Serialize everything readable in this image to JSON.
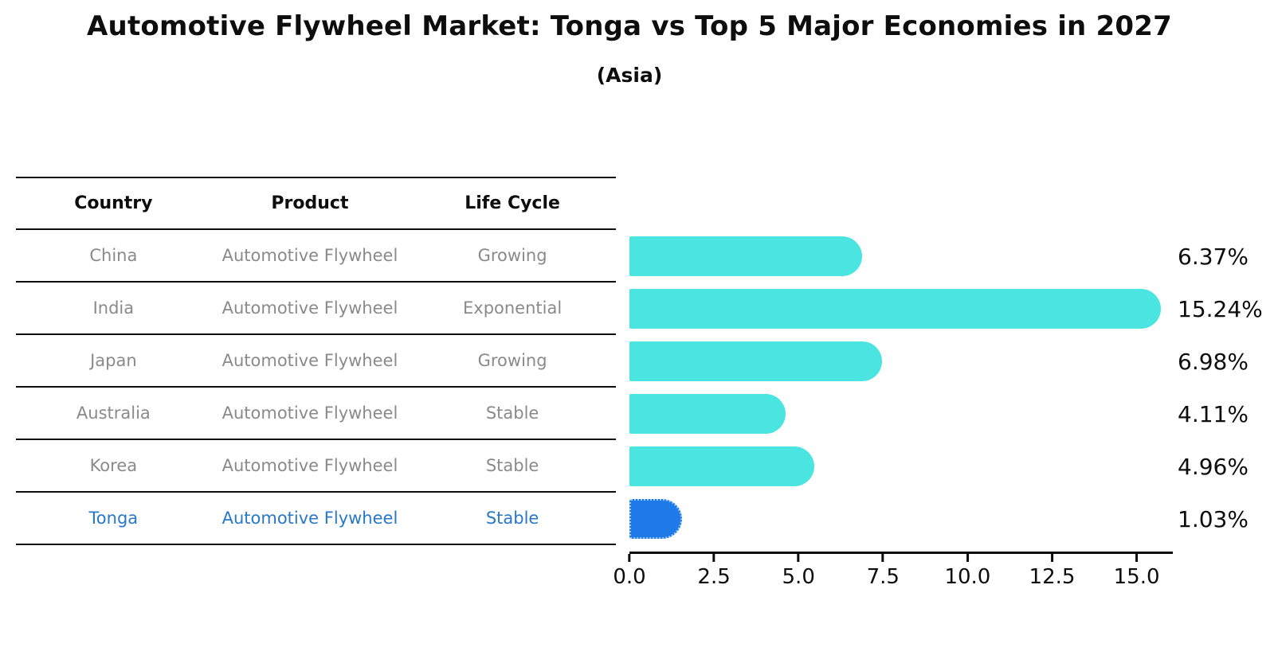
{
  "header": {
    "title": "Automotive Flywheel Market: Tonga vs Top 5 Major Economies in 2027",
    "subtitle": "(Asia)"
  },
  "table": {
    "columns": [
      "Country",
      "Product",
      "Life Cycle"
    ],
    "rows": [
      {
        "country": "China",
        "product": "Automotive Flywheel",
        "life_cycle": "Growing",
        "highlighted": false
      },
      {
        "country": "India",
        "product": "Automotive Flywheel",
        "life_cycle": "Exponential",
        "highlighted": false
      },
      {
        "country": "Japan",
        "product": "Automotive Flywheel",
        "life_cycle": "Growing",
        "highlighted": false
      },
      {
        "country": "Australia",
        "product": "Automotive Flywheel",
        "life_cycle": "Stable",
        "highlighted": false
      },
      {
        "country": "Korea",
        "product": "Automotive Flywheel",
        "life_cycle": "Stable",
        "highlighted": false
      },
      {
        "country": "Tonga",
        "product": "Automotive Flywheel",
        "life_cycle": "Stable",
        "highlighted": true
      }
    ]
  },
  "chart_data": {
    "type": "bar",
    "orientation": "horizontal",
    "title": "Automotive Flywheel Market: Tonga vs Top 5 Major Economies in 2027 (Asia)",
    "xlabel": "",
    "ylabel": "",
    "grid": false,
    "legend": false,
    "categories": [
      "China",
      "India",
      "Japan",
      "Australia",
      "Korea",
      "Tonga"
    ],
    "values": [
      6.37,
      15.24,
      6.98,
      4.11,
      4.96,
      1.03
    ],
    "value_labels": [
      "6.37%",
      "15.24%",
      "6.98%",
      "4.11%",
      "4.96%",
      "1.03%"
    ],
    "xlim": [
      0,
      16.07
    ],
    "x_tick_values": [
      0.0,
      2.5,
      5.0,
      7.5,
      10.0,
      12.5,
      15.0
    ],
    "x_tick_labels": [
      "0.0",
      "2.5",
      "5.0",
      "7.5",
      "10.0",
      "12.5",
      "15.0"
    ],
    "bar_colors": [
      "#4ae5e0",
      "#4ae5e0",
      "#4ae5e0",
      "#4ae5e0",
      "#4ae5e0",
      "#1f7ae8"
    ],
    "default_bar_color": "#4ae5e0",
    "highlight_bar_color": "#1f7ae8",
    "highlight_text_color": "#2878c8",
    "body_text_color": "#8a8a8a"
  }
}
